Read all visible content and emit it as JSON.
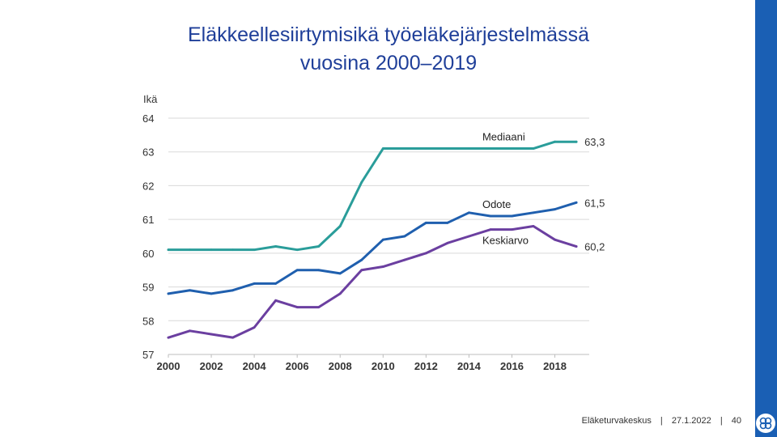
{
  "slide": {
    "title_line1": "Eläkkeellesiirtymisikä työeläkejärjestelmässä",
    "title_line2": "vuosina 2000–2019"
  },
  "footer": {
    "organization": "Eläketurvakeskus",
    "separator": "|",
    "date": "27.1.2022",
    "page": "40"
  },
  "colors": {
    "title": "#1f3f99",
    "sidebar": "#1a5fb4",
    "mediaani": "#2a9d9a",
    "odote": "#1f5fae",
    "keskiarvo": "#6b3fa0"
  },
  "chart_data": {
    "type": "line",
    "ylabel": "Ikä",
    "ylim": [
      57,
      64
    ],
    "yticks": [
      "57",
      "58",
      "59",
      "60",
      "61",
      "62",
      "63",
      "64"
    ],
    "xlim": [
      2000,
      2019
    ],
    "xticks": [
      "2000",
      "2002",
      "2004",
      "2006",
      "2008",
      "2010",
      "2012",
      "2014",
      "2016",
      "2018"
    ],
    "grid": true,
    "x": [
      2000,
      2001,
      2002,
      2003,
      2004,
      2005,
      2006,
      2007,
      2008,
      2009,
      2010,
      2011,
      2012,
      2013,
      2014,
      2015,
      2016,
      2017,
      2018,
      2019
    ],
    "series": [
      {
        "name": "Mediaani",
        "color": "#2a9d9a",
        "end_label": "63,3",
        "values": [
          60.1,
          60.1,
          60.1,
          60.1,
          60.1,
          60.2,
          60.1,
          60.2,
          60.8,
          62.1,
          63.1,
          63.1,
          63.1,
          63.1,
          63.1,
          63.1,
          63.1,
          63.1,
          63.3,
          63.3
        ]
      },
      {
        "name": "Odote",
        "color": "#1f5fae",
        "end_label": "61,5",
        "values": [
          58.8,
          58.9,
          58.8,
          58.9,
          59.1,
          59.1,
          59.5,
          59.5,
          59.4,
          59.8,
          60.4,
          60.5,
          60.9,
          60.9,
          61.2,
          61.1,
          61.1,
          61.2,
          61.3,
          61.5
        ]
      },
      {
        "name": "Keskiarvo",
        "color": "#6b3fa0",
        "end_label": "60,2",
        "values": [
          57.5,
          57.7,
          57.6,
          57.5,
          57.8,
          58.6,
          58.4,
          58.4,
          58.8,
          59.5,
          59.6,
          59.8,
          60.0,
          60.3,
          60.5,
          60.7,
          60.7,
          60.8,
          60.4,
          60.2
        ]
      }
    ]
  }
}
